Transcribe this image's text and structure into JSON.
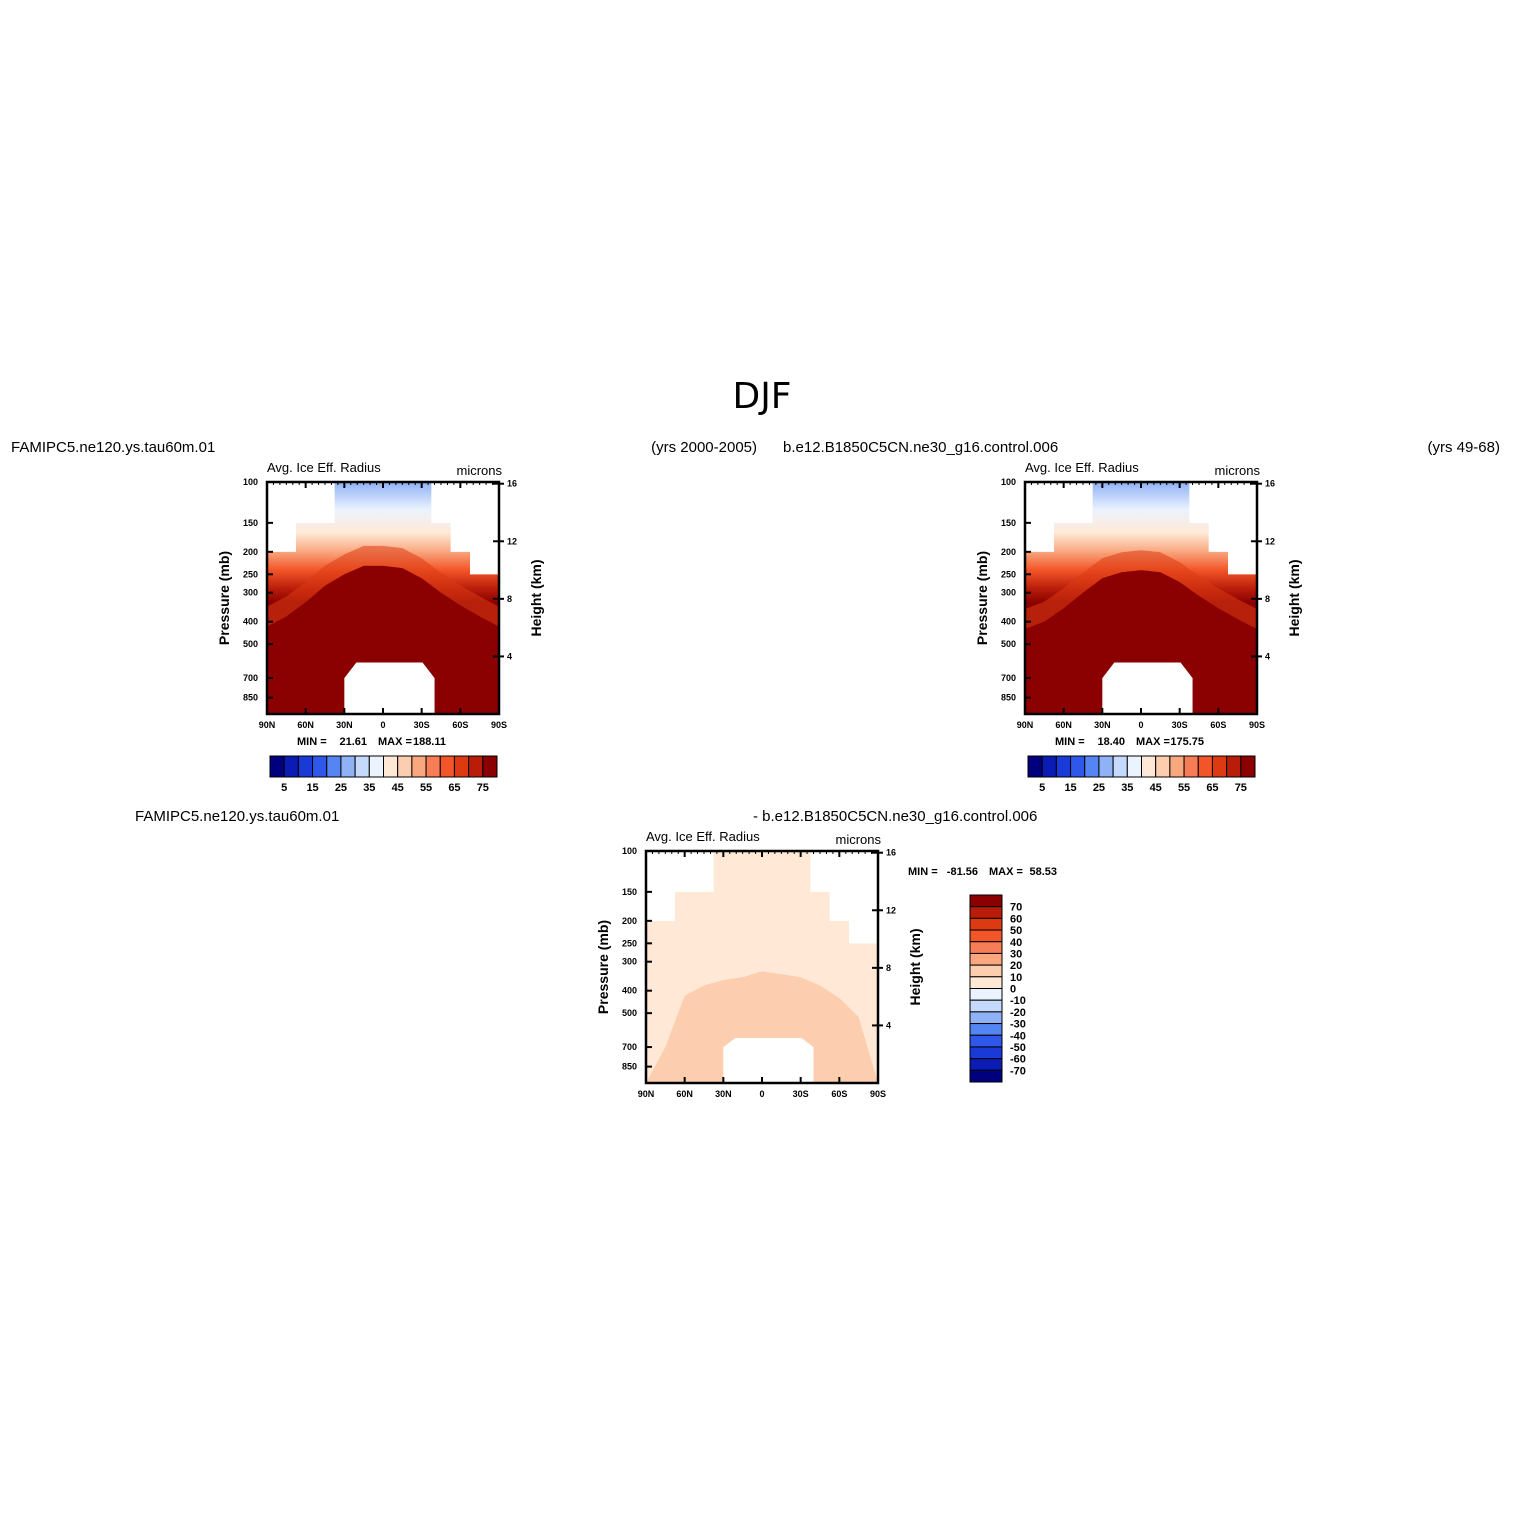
{
  "title": "DJF",
  "header": {
    "case_test": "FAMIPC5.ne120.ys.tau60m.01",
    "years_test": "(yrs 2000-2005)",
    "case_control": "b.e12.B1850C5CN.ne30_g16.control.006",
    "years_control": "(yrs 49-68)",
    "diff_test": "FAMIPC5.ne120.ys.tau60m.01",
    "diff_control": "- b.e12.B1850C5CN.ne30_g16.control.006"
  },
  "colors": {
    "abs_scale": [
      "#00007f",
      "#0a1cb3",
      "#1a3ad8",
      "#2f58ea",
      "#5585f2",
      "#8fb1f5",
      "#c4d9fb",
      "#ebf3fe",
      "#ffe9d6",
      "#fccdae",
      "#f9a77f",
      "#f77d56",
      "#f25528",
      "#dd3a12",
      "#b91d0a",
      "#8b0000"
    ],
    "diff_scale": [
      "#00007f",
      "#0a1cb3",
      "#1a3ad8",
      "#2f58ea",
      "#5585f2",
      "#8fb1f5",
      "#c4d9fb",
      "#ebf3fe",
      "#ffe9d6",
      "#fccdae",
      "#f9a77f",
      "#f77d56",
      "#f25528",
      "#dd3a12",
      "#b91d0a",
      "#8b0000"
    ]
  },
  "chart_data": [
    {
      "type": "heatmap",
      "panel": "test",
      "title": "Avg. Ice Eff. Radius",
      "units": "microns",
      "xlabel": "",
      "ylabel": "Pressure (mb)",
      "ylabel_right": "Height (km)",
      "x_ticks": [
        "90N",
        "60N",
        "30N",
        "0",
        "30S",
        "60S",
        "90S"
      ],
      "y_ticks": [
        100,
        150,
        200,
        250,
        300,
        400,
        500,
        700,
        850
      ],
      "y_right_ticks": [
        16,
        12,
        8,
        4
      ],
      "x": [
        90,
        -90
      ],
      "y_log": true,
      "ylim": [
        100,
        1000
      ],
      "min_label": "MIN =",
      "min": "21.61",
      "max_label": "MAX =",
      "max": "188.11",
      "colorbar_ticks": [
        5,
        15,
        25,
        35,
        45,
        55,
        65,
        75
      ],
      "levels": [
        0,
        5,
        10,
        15,
        20,
        25,
        30,
        35,
        40,
        45,
        50,
        55,
        60,
        65,
        70,
        75
      ],
      "profile": {
        "lat": [
          90,
          75,
          60,
          45,
          30,
          15,
          0,
          -15,
          -30,
          -45,
          -60,
          -75,
          -90
        ],
        "top_p": [
          200,
          200,
          150,
          150,
          100,
          100,
          100,
          100,
          100,
          150,
          200,
          250,
          250
        ],
        "iso75_p": [
          420,
          380,
          330,
          280,
          250,
          230,
          230,
          235,
          260,
          300,
          340,
          380,
          420
        ],
        "surface_p": [
          1000,
          1000,
          1000,
          1000,
          1000,
          1000,
          1000,
          1000,
          1000,
          1000,
          1000,
          1000,
          1000
        ]
      }
    },
    {
      "type": "heatmap",
      "panel": "control",
      "title": "Avg. Ice Eff. Radius",
      "units": "microns",
      "xlabel": "",
      "ylabel": "Pressure (mb)",
      "ylabel_right": "Height (km)",
      "x_ticks": [
        "90N",
        "60N",
        "30N",
        "0",
        "30S",
        "60S",
        "90S"
      ],
      "y_ticks": [
        100,
        150,
        200,
        250,
        300,
        400,
        500,
        700,
        850
      ],
      "y_right_ticks": [
        16,
        12,
        8,
        4
      ],
      "x": [
        90,
        -90
      ],
      "y_log": true,
      "ylim": [
        100,
        1000
      ],
      "min_label": "MIN =",
      "min": "18.40",
      "max_label": "MAX =",
      "max": "175.75",
      "colorbar_ticks": [
        5,
        15,
        25,
        35,
        45,
        55,
        65,
        75
      ],
      "levels": [
        0,
        5,
        10,
        15,
        20,
        25,
        30,
        35,
        40,
        45,
        50,
        55,
        60,
        65,
        70,
        75
      ],
      "profile": {
        "lat": [
          90,
          75,
          60,
          45,
          30,
          15,
          0,
          -15,
          -30,
          -45,
          -60,
          -75,
          -90
        ],
        "top_p": [
          200,
          200,
          150,
          150,
          100,
          100,
          100,
          100,
          100,
          150,
          200,
          250,
          250
        ],
        "iso75_p": [
          430,
          400,
          350,
          300,
          260,
          245,
          240,
          245,
          270,
          310,
          350,
          390,
          430
        ],
        "surface_p": [
          1000,
          1000,
          1000,
          1000,
          1000,
          1000,
          1000,
          1000,
          1000,
          1000,
          1000,
          1000,
          1000
        ]
      }
    },
    {
      "type": "heatmap",
      "panel": "difference",
      "title": "Avg. Ice Eff. Radius",
      "units": "microns",
      "xlabel": "",
      "ylabel": "Pressure (mb)",
      "ylabel_right": "Height (km)",
      "x_ticks": [
        "90N",
        "60N",
        "30N",
        "0",
        "30S",
        "60S",
        "90S"
      ],
      "y_ticks": [
        100,
        150,
        200,
        250,
        300,
        400,
        500,
        700,
        850
      ],
      "y_right_ticks": [
        16,
        12,
        8,
        4
      ],
      "x": [
        90,
        -90
      ],
      "y_log": true,
      "ylim": [
        100,
        1000
      ],
      "min_label": "MIN =",
      "min": "-81.56",
      "max_label": "MAX =",
      "max": "58.53",
      "colorbar_ticks": [
        70,
        60,
        50,
        40,
        30,
        20,
        10,
        0,
        -10,
        -20,
        -30,
        -40,
        -50,
        -60,
        -70
      ],
      "levels": [
        -70,
        -60,
        -50,
        -40,
        -30,
        -20,
        -10,
        0,
        10,
        20,
        30,
        40,
        50,
        60,
        70
      ],
      "profile": {
        "lat": [
          90,
          75,
          60,
          45,
          30,
          15,
          0,
          -15,
          -30,
          -45,
          -60,
          -75,
          -90
        ],
        "top_p": [
          200,
          200,
          150,
          150,
          100,
          100,
          100,
          100,
          100,
          150,
          200,
          250,
          250
        ],
        "p10_p": [
          1000,
          700,
          420,
          380,
          360,
          350,
          330,
          340,
          350,
          380,
          430,
          520,
          1000
        ],
        "surface_p": [
          1000,
          1000,
          1000,
          1000,
          1000,
          1000,
          1000,
          1000,
          1000,
          1000,
          1000,
          1000,
          1000
        ]
      }
    }
  ]
}
